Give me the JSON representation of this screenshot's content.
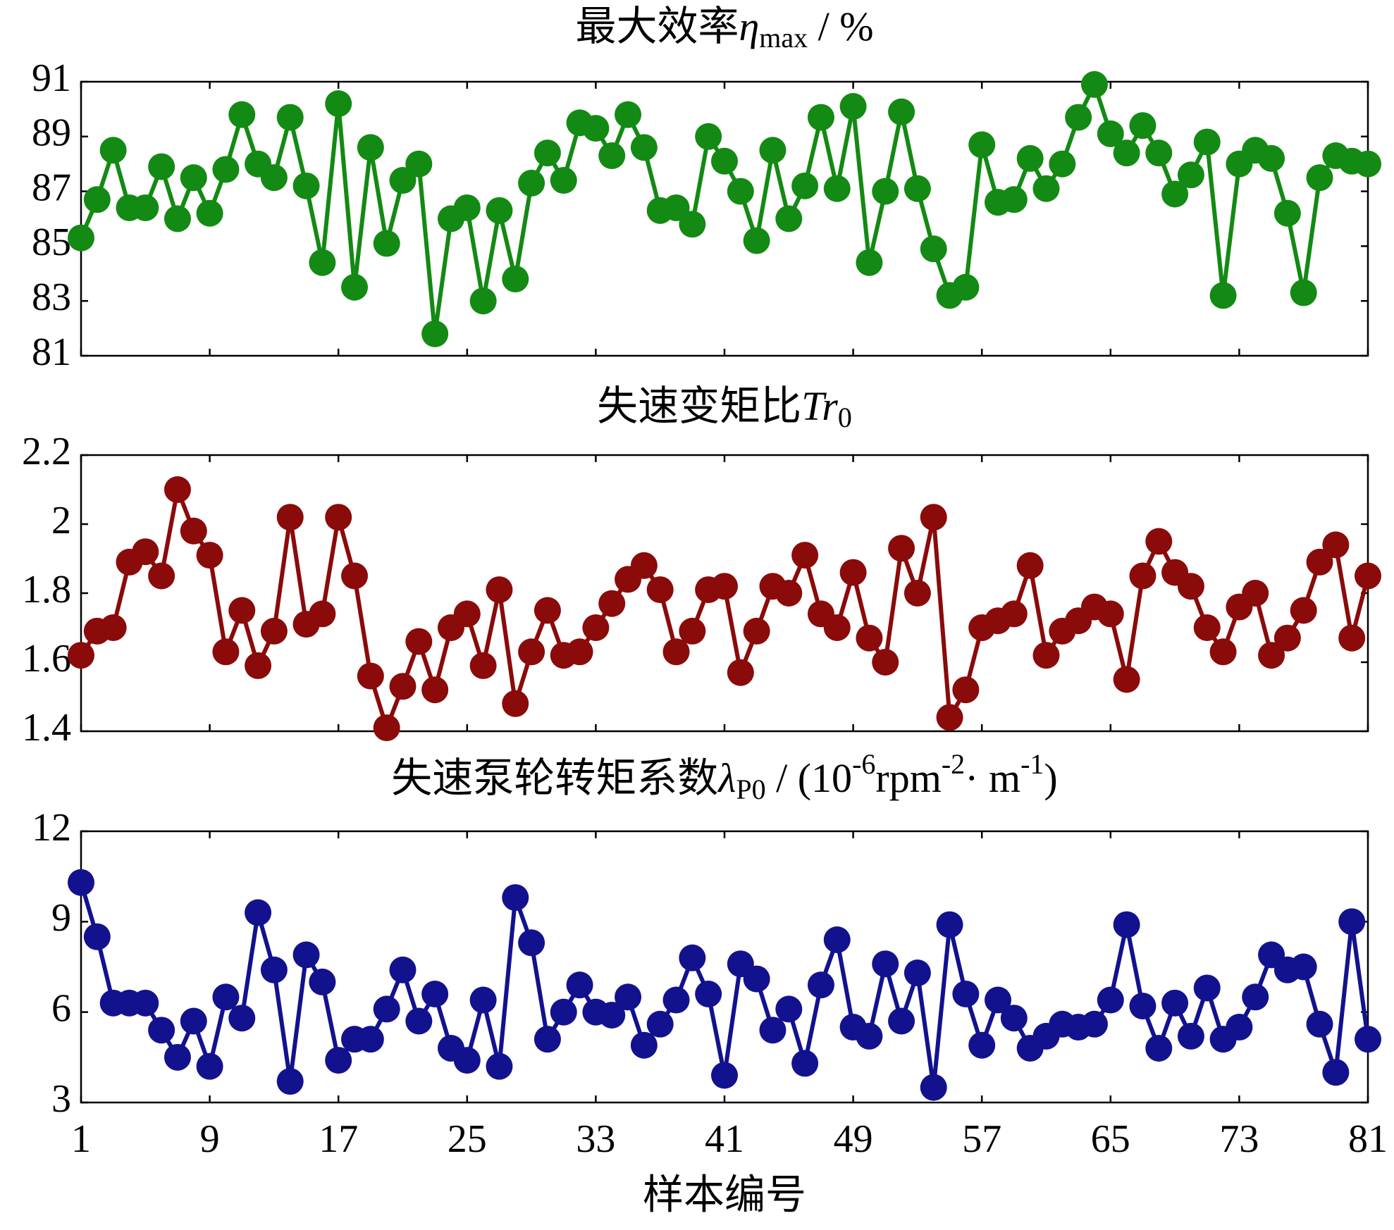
{
  "chart_data": [
    {
      "type": "line",
      "title": [
        {
          "text": "最大效率",
          "style": "normal"
        },
        {
          "text": "η",
          "style": "italic"
        },
        {
          "text": "max",
          "style": "sub"
        },
        {
          "text": " / %",
          "style": "normal"
        }
      ],
      "x": [
        1,
        2,
        3,
        4,
        5,
        6,
        7,
        8,
        9,
        10,
        11,
        12,
        13,
        14,
        15,
        16,
        17,
        18,
        19,
        20,
        21,
        22,
        23,
        24,
        25,
        26,
        27,
        28,
        29,
        30,
        31,
        32,
        33,
        34,
        35,
        36,
        37,
        38,
        39,
        40,
        41,
        42,
        43,
        44,
        45,
        46,
        47,
        48,
        49,
        50,
        51,
        52,
        53,
        54,
        55,
        56,
        57,
        58,
        59,
        60,
        61,
        62,
        63,
        64,
        65,
        66,
        67,
        68,
        69,
        70,
        71,
        72,
        73,
        74,
        75,
        76,
        77,
        78,
        79,
        80,
        81
      ],
      "series": [
        {
          "color": "#138a13",
          "values": [
            85.3,
            86.7,
            88.5,
            86.4,
            86.4,
            87.9,
            86.0,
            87.5,
            86.2,
            87.8,
            89.8,
            88.0,
            87.5,
            89.7,
            87.2,
            84.4,
            90.2,
            83.5,
            88.6,
            85.1,
            87.4,
            88.0,
            81.8,
            86.0,
            86.4,
            83.0,
            86.3,
            83.8,
            87.3,
            88.4,
            87.4,
            89.5,
            89.3,
            88.3,
            89.8,
            88.6,
            86.3,
            86.4,
            85.8,
            89.0,
            88.1,
            87.0,
            85.2,
            88.5,
            86.0,
            87.2,
            89.7,
            87.1,
            90.1,
            84.4,
            87.0,
            89.9,
            87.1,
            84.9,
            83.2,
            83.5,
            88.7,
            86.6,
            86.7,
            88.2,
            87.1,
            88.0,
            89.7,
            90.9,
            89.1,
            88.4,
            89.4,
            88.4,
            86.9,
            87.6,
            88.8,
            83.2,
            88.0,
            88.5,
            88.2,
            86.2,
            83.3,
            87.5,
            88.3,
            88.1,
            88.0
          ]
        }
      ],
      "xlim": [
        1,
        81
      ],
      "xticks": [
        1,
        9,
        17,
        25,
        33,
        41,
        49,
        57,
        65,
        73,
        81
      ],
      "ylim": [
        81,
        91
      ],
      "yticks": [
        81,
        83,
        85,
        87,
        89,
        91
      ]
    },
    {
      "type": "line",
      "title": [
        {
          "text": "失速变矩比",
          "style": "normal"
        },
        {
          "text": "Tr",
          "style": "italic"
        },
        {
          "text": "0",
          "style": "sub"
        }
      ],
      "x": [
        1,
        2,
        3,
        4,
        5,
        6,
        7,
        8,
        9,
        10,
        11,
        12,
        13,
        14,
        15,
        16,
        17,
        18,
        19,
        20,
        21,
        22,
        23,
        24,
        25,
        26,
        27,
        28,
        29,
        30,
        31,
        32,
        33,
        34,
        35,
        36,
        37,
        38,
        39,
        40,
        41,
        42,
        43,
        44,
        45,
        46,
        47,
        48,
        49,
        50,
        51,
        52,
        53,
        54,
        55,
        56,
        57,
        58,
        59,
        60,
        61,
        62,
        63,
        64,
        65,
        66,
        67,
        68,
        69,
        70,
        71,
        72,
        73,
        74,
        75,
        76,
        77,
        78,
        79,
        80,
        81
      ],
      "series": [
        {
          "color": "#8b0a0a",
          "values": [
            1.62,
            1.69,
            1.7,
            1.89,
            1.92,
            1.85,
            2.1,
            1.98,
            1.91,
            1.63,
            1.75,
            1.59,
            1.69,
            2.02,
            1.71,
            1.74,
            2.02,
            1.85,
            1.56,
            1.41,
            1.53,
            1.66,
            1.52,
            1.7,
            1.74,
            1.59,
            1.81,
            1.48,
            1.63,
            1.75,
            1.62,
            1.63,
            1.7,
            1.77,
            1.84,
            1.88,
            1.81,
            1.63,
            1.69,
            1.81,
            1.82,
            1.57,
            1.69,
            1.82,
            1.8,
            1.91,
            1.74,
            1.7,
            1.86,
            1.67,
            1.6,
            1.93,
            1.8,
            2.02,
            1.44,
            1.52,
            1.7,
            1.72,
            1.74,
            1.88,
            1.62,
            1.69,
            1.72,
            1.76,
            1.74,
            1.55,
            1.85,
            1.95,
            1.86,
            1.82,
            1.7,
            1.63,
            1.76,
            1.8,
            1.62,
            1.67,
            1.75,
            1.89,
            1.94,
            1.67,
            1.85
          ]
        }
      ],
      "xlim": [
        1,
        81
      ],
      "xticks": [
        1,
        9,
        17,
        25,
        33,
        41,
        49,
        57,
        65,
        73,
        81
      ],
      "ylim": [
        1.4,
        2.2
      ],
      "yticks": [
        1.4,
        1.6,
        1.8,
        2,
        2.2
      ]
    },
    {
      "type": "line",
      "title": [
        {
          "text": "失速泵轮转矩系数",
          "style": "normal"
        },
        {
          "text": "λ",
          "style": "italic"
        },
        {
          "text": "P0",
          "style": "sub"
        },
        {
          "text": " / (10",
          "style": "normal"
        },
        {
          "text": "-6",
          "style": "sup"
        },
        {
          "text": "rpm",
          "style": "normal"
        },
        {
          "text": "-2",
          "style": "sup"
        },
        {
          "text": "· m",
          "style": "normal"
        },
        {
          "text": "-1",
          "style": "sup"
        },
        {
          "text": ")",
          "style": "normal"
        }
      ],
      "xlabel": "样本编号",
      "x": [
        1,
        2,
        3,
        4,
        5,
        6,
        7,
        8,
        9,
        10,
        11,
        12,
        13,
        14,
        15,
        16,
        17,
        18,
        19,
        20,
        21,
        22,
        23,
        24,
        25,
        26,
        27,
        28,
        29,
        30,
        31,
        32,
        33,
        34,
        35,
        36,
        37,
        38,
        39,
        40,
        41,
        42,
        43,
        44,
        45,
        46,
        47,
        48,
        49,
        50,
        51,
        52,
        53,
        54,
        55,
        56,
        57,
        58,
        59,
        60,
        61,
        62,
        63,
        64,
        65,
        66,
        67,
        68,
        69,
        70,
        71,
        72,
        73,
        74,
        75,
        76,
        77,
        78,
        79,
        80,
        81
      ],
      "series": [
        {
          "color": "#12128f",
          "values": [
            10.3,
            8.5,
            6.3,
            6.3,
            6.3,
            5.4,
            4.5,
            5.7,
            4.2,
            6.5,
            5.8,
            9.3,
            7.4,
            3.7,
            7.9,
            7.0,
            4.4,
            5.1,
            5.1,
            6.1,
            7.4,
            5.7,
            6.6,
            4.8,
            4.4,
            6.4,
            4.2,
            9.8,
            8.3,
            5.1,
            6.0,
            6.9,
            6.0,
            5.9,
            6.5,
            4.9,
            5.6,
            6.4,
            7.8,
            6.6,
            3.9,
            7.6,
            7.1,
            5.4,
            6.1,
            4.3,
            6.9,
            8.4,
            5.5,
            5.2,
            7.6,
            5.7,
            7.3,
            3.5,
            8.9,
            6.6,
            4.9,
            6.4,
            5.8,
            4.8,
            5.2,
            5.6,
            5.5,
            5.6,
            6.4,
            8.9,
            6.2,
            4.8,
            6.3,
            5.2,
            6.8,
            5.1,
            5.5,
            6.5,
            7.9,
            7.4,
            7.5,
            5.6,
            4.0,
            9.0,
            5.1
          ]
        }
      ],
      "xlim": [
        1,
        81
      ],
      "xticks": [
        1,
        9,
        17,
        25,
        33,
        41,
        49,
        57,
        65,
        73,
        81
      ],
      "ylim": [
        3,
        12
      ],
      "yticks": [
        3,
        6,
        9,
        12
      ]
    }
  ]
}
